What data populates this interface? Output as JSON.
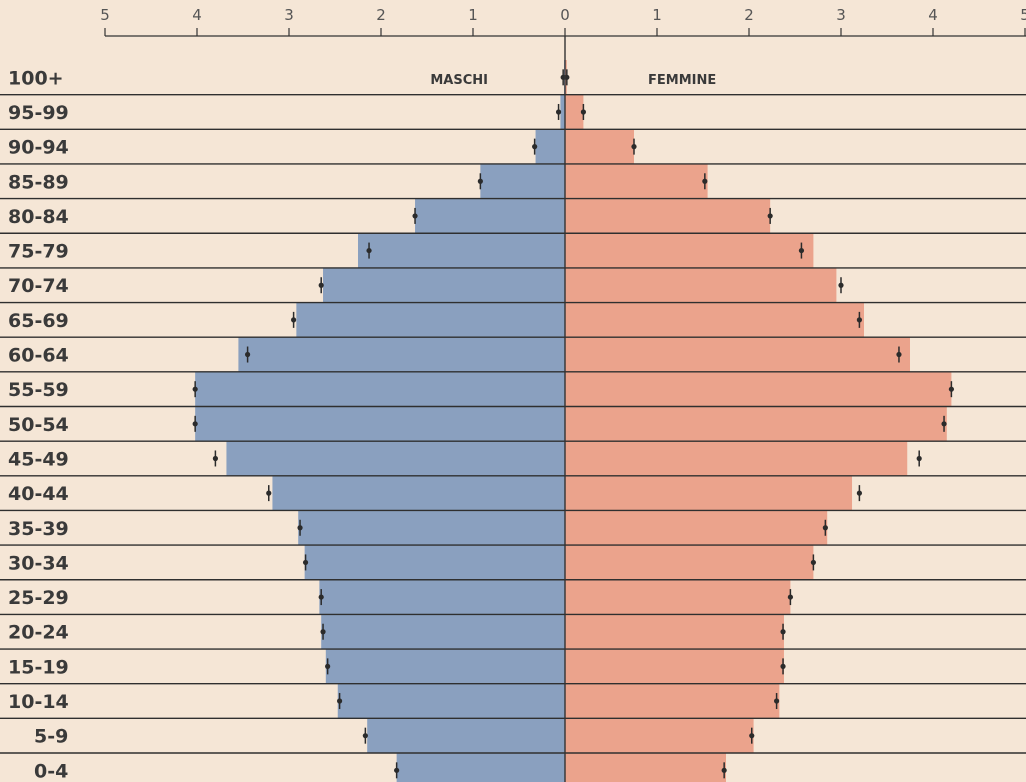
{
  "chart_data": {
    "type": "bar",
    "orientation": "horizontal-population-pyramid",
    "categories": [
      "100+",
      "95-99",
      "90-94",
      "85-89",
      "80-84",
      "75-79",
      "70-74",
      "65-69",
      "60-64",
      "55-59",
      "50-54",
      "45-49",
      "40-44",
      "35-39",
      "30-34",
      "25-29",
      "20-24",
      "15-19",
      "10-14",
      "5-9",
      "0-4"
    ],
    "series": [
      {
        "name": "MASCHI",
        "color": "#8aa0bf",
        "values": [
          0.01,
          0.05,
          0.32,
          0.92,
          1.63,
          2.25,
          2.63,
          2.92,
          3.55,
          4.02,
          4.02,
          3.68,
          3.18,
          2.9,
          2.83,
          2.67,
          2.65,
          2.6,
          2.47,
          2.15,
          1.83
        ],
        "markers": [
          0.02,
          0.07,
          0.33,
          0.92,
          1.63,
          2.13,
          2.65,
          2.95,
          3.45,
          4.02,
          4.02,
          3.8,
          3.22,
          2.88,
          2.82,
          2.65,
          2.63,
          2.58,
          2.45,
          2.17,
          1.83
        ]
      },
      {
        "name": "FEMMINE",
        "color": "#eba38c",
        "values": [
          0.02,
          0.2,
          0.75,
          1.55,
          2.23,
          2.7,
          2.95,
          3.25,
          3.75,
          4.2,
          4.15,
          3.72,
          3.12,
          2.85,
          2.7,
          2.45,
          2.38,
          2.38,
          2.33,
          2.05,
          1.75
        ],
        "markers": [
          0.02,
          0.2,
          0.75,
          1.52,
          2.23,
          2.57,
          3.0,
          3.2,
          3.63,
          4.2,
          4.12,
          3.85,
          3.2,
          2.83,
          2.7,
          2.45,
          2.37,
          2.37,
          2.3,
          2.03,
          1.73
        ]
      }
    ],
    "xlim": [
      -5,
      5
    ],
    "x_ticks": [
      5,
      4,
      3,
      2,
      1,
      0,
      1,
      2,
      3,
      4,
      5
    ],
    "grid": false,
    "axis_color": "#333333",
    "marker_color": "#2b2b2b",
    "background": "#f5e6d6"
  }
}
